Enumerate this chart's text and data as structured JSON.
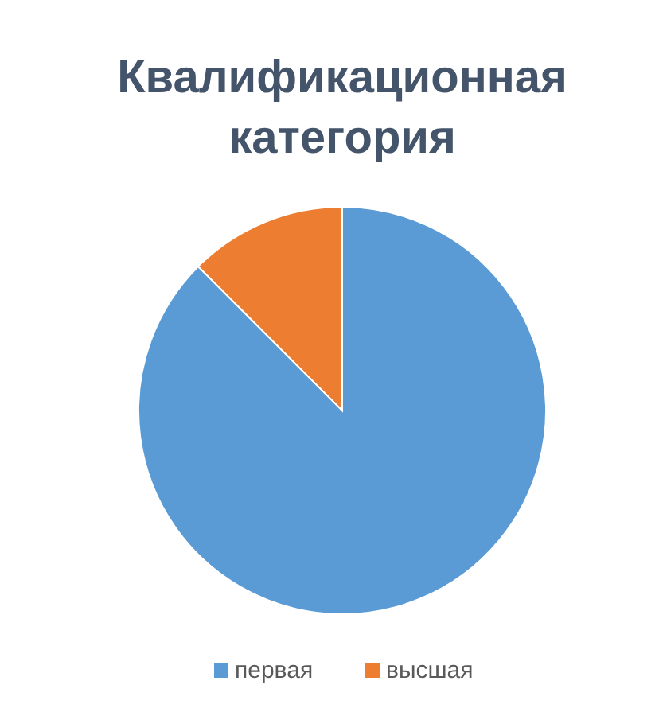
{
  "chart_data": {
    "type": "pie",
    "title": "Квалификационная категория",
    "categories": [
      "первая",
      "высшая"
    ],
    "values": [
      87.5,
      12.5
    ],
    "colors": [
      "#5b9bd5",
      "#ed7d31"
    ],
    "legend": "bottom"
  }
}
